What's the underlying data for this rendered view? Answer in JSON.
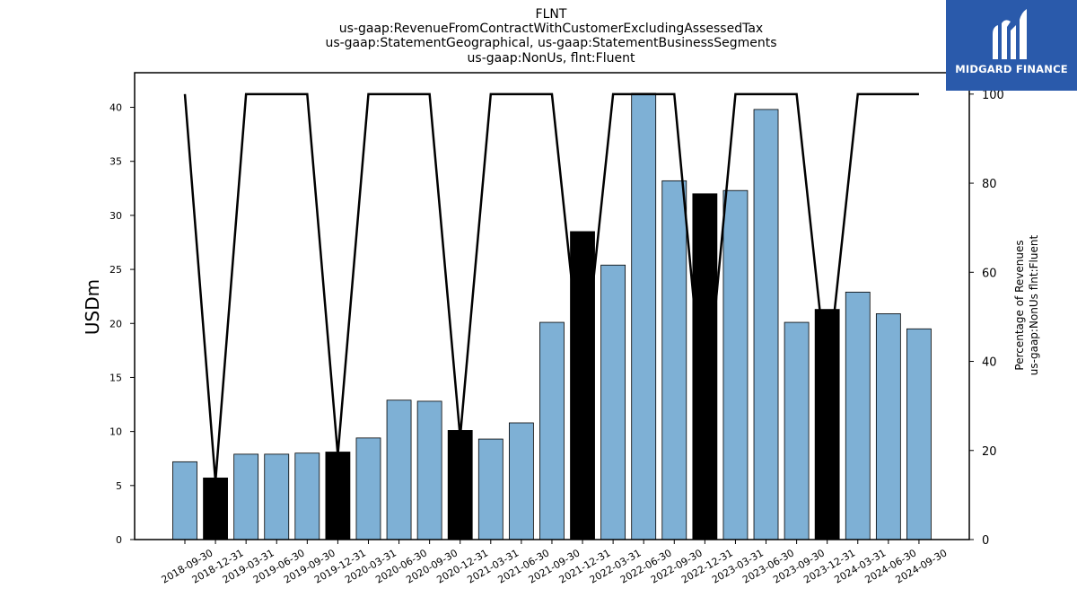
{
  "logo": {
    "text": "MIDGARD FINANCE",
    "color": "#2a5aab"
  },
  "chart_data": {
    "type": "bar",
    "title_lines": [
      "FLNT",
      "us-gaap:RevenueFromContractWithCustomerExcludingAssessedTax",
      "us-gaap:StatementGeographical, us-gaap:StatementBusinessSegments",
      "us-gaap:NonUs, flnt:Fluent"
    ],
    "ylabel": "USDm",
    "y2label_lines": [
      "Percentage of Revenues",
      "us-gaap:NonUs flnt:Fluent"
    ],
    "categories": [
      "2018-09-30",
      "2018-12-31",
      "2019-03-31",
      "2019-06-30",
      "2019-09-30",
      "2019-12-31",
      "2020-03-31",
      "2020-06-30",
      "2020-09-30",
      "2020-12-31",
      "2021-03-31",
      "2021-06-30",
      "2021-09-30",
      "2021-12-31",
      "2022-03-31",
      "2022-06-30",
      "2022-09-30",
      "2022-12-31",
      "2023-03-31",
      "2023-06-30",
      "2023-09-30",
      "2023-12-31",
      "2024-03-31",
      "2024-06-30",
      "2024-09-30"
    ],
    "series": [
      {
        "values": [
          7.2,
          5.7,
          7.9,
          7.9,
          8.0,
          8.1,
          9.4,
          12.9,
          12.8,
          10.1,
          9.3,
          10.8,
          20.1,
          28.5,
          25.4,
          41.3,
          33.2,
          32.0,
          32.3,
          39.8,
          20.1,
          21.3,
          22.9,
          20.9,
          19.5
        ]
      },
      {
        "axis": "right",
        "type": "line",
        "values": [
          100,
          13,
          100,
          100,
          100,
          19,
          100,
          100,
          100,
          23,
          100,
          100,
          100,
          35,
          100,
          100,
          100,
          27,
          100,
          100,
          100,
          36,
          100,
          100,
          100
        ]
      }
    ],
    "highlighted": [
      false,
      true,
      false,
      false,
      false,
      true,
      false,
      false,
      false,
      true,
      false,
      false,
      false,
      true,
      false,
      false,
      false,
      true,
      false,
      false,
      false,
      true,
      false,
      false,
      false
    ],
    "ylim": [
      0,
      43.2
    ],
    "yticks": [
      0,
      5,
      10,
      15,
      20,
      25,
      30,
      35,
      40
    ],
    "y2lim": [
      0,
      104.8
    ],
    "y2ticks": [
      0,
      20,
      40,
      60,
      80,
      100
    ],
    "colors": {
      "bar": "#7eb0d5",
      "highlight_bar": "#000000",
      "line": "#000000"
    },
    "grid": false,
    "legend": "none"
  }
}
